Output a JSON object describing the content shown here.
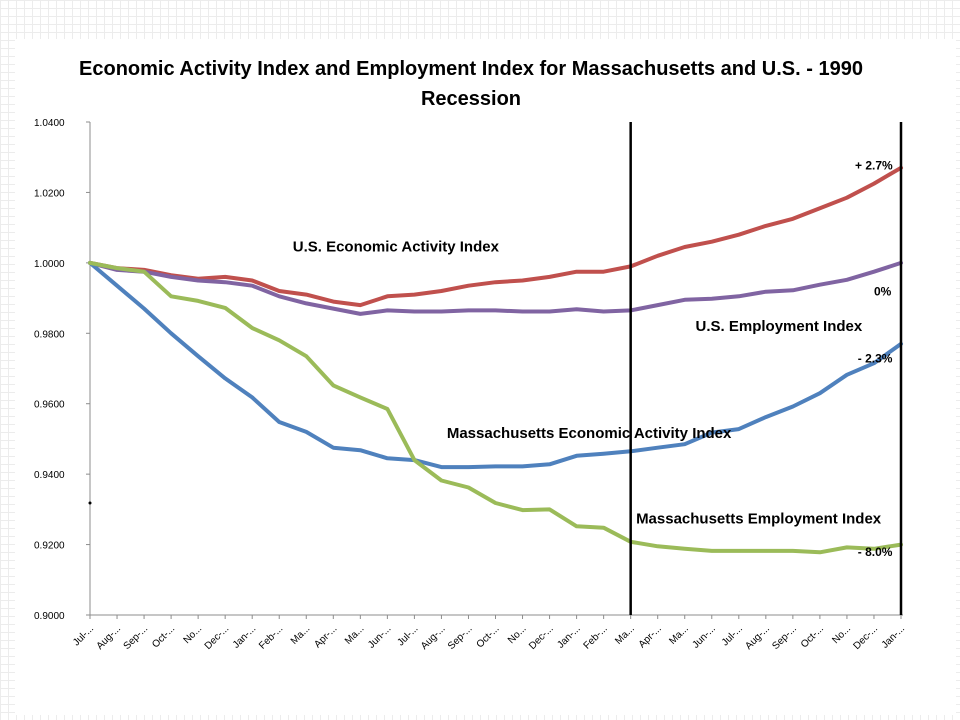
{
  "chart_data": {
    "type": "line",
    "title_lines": [
      "Economic Activity Index and Employment Index for Massachusetts and U.S. - 1990",
      "Recession"
    ],
    "xlabel": "",
    "ylabel": "",
    "ylim": [
      0.9,
      1.04
    ],
    "yticks": [
      "1.0400",
      "1.0200",
      "1.0000",
      "0.9800",
      "0.9600",
      "0.9400",
      "0.9200",
      "0.9000"
    ],
    "ytick_values": [
      1.04,
      1.02,
      1.0,
      0.98,
      0.96,
      0.94,
      0.92,
      0.9
    ],
    "grid": false,
    "legend": "none",
    "categories": [
      "Jul-...",
      "Aug-...",
      "Sep-...",
      "Oct-...",
      "No...",
      "Dec-...",
      "Jan-...",
      "Feb-...",
      "Ma...",
      "Apr-...",
      "Ma...",
      "Jun-...",
      "Jul-...",
      "Aug-...",
      "Sep-...",
      "Oct-...",
      "No...",
      "Dec-...",
      "Jan-...",
      "Feb-...",
      "Ma...",
      "Apr-...",
      "Ma...",
      "Jun-...",
      "Jul-...",
      "Aug-...",
      "Sep-...",
      "Oct-...",
      "No...",
      "Dec-...",
      "Jan-..."
    ],
    "series": [
      {
        "color": "#c0504d",
        "values": [
          1.0,
          0.9985,
          0.998,
          0.9965,
          0.9955,
          0.996,
          0.995,
          0.992,
          0.991,
          0.989,
          0.988,
          0.9905,
          0.991,
          0.992,
          0.9935,
          0.9945,
          0.995,
          0.996,
          0.9975,
          0.9975,
          0.999,
          1.002,
          1.0045,
          1.006,
          1.008,
          1.0105,
          1.0125,
          1.0155,
          1.0185,
          1.0225,
          1.027
        ]
      },
      {
        "color": "#8064a2",
        "values": [
          1.0,
          0.998,
          0.9975,
          0.996,
          0.995,
          0.9945,
          0.9935,
          0.9905,
          0.9885,
          0.987,
          0.9855,
          0.9865,
          0.9862,
          0.9862,
          0.9865,
          0.9865,
          0.9862,
          0.9862,
          0.9868,
          0.9862,
          0.9865,
          0.988,
          0.9895,
          0.9898,
          0.9905,
          0.9918,
          0.9922,
          0.9938,
          0.9952,
          0.9975,
          1.0
        ]
      },
      {
        "color": "#4f81bd",
        "values": [
          1.0,
          0.9935,
          0.987,
          0.98,
          0.9735,
          0.9672,
          0.9618,
          0.9548,
          0.952,
          0.9475,
          0.9468,
          0.9445,
          0.944,
          0.942,
          0.942,
          0.9422,
          0.9422,
          0.9428,
          0.9452,
          0.9458,
          0.9465,
          0.9475,
          0.9485,
          0.9518,
          0.9528,
          0.9562,
          0.9592,
          0.963,
          0.9682,
          0.9715,
          0.977
        ]
      },
      {
        "color": "#9bbb59",
        "values": [
          1.0,
          0.9985,
          0.9975,
          0.9905,
          0.9892,
          0.9872,
          0.9815,
          0.978,
          0.9735,
          0.9652,
          0.9618,
          0.9585,
          0.944,
          0.9382,
          0.9362,
          0.9318,
          0.9298,
          0.93,
          0.9252,
          0.9248,
          0.9208,
          0.9195,
          0.9188,
          0.9182,
          0.9182,
          0.9182,
          0.9182,
          0.9178,
          0.9192,
          0.9188,
          0.92
        ]
      }
    ],
    "annotations": [
      {
        "text": "U.S. Economic Activity Index",
        "x": 7.5,
        "y": 1.0032
      },
      {
        "text": "+ 2.7%",
        "x": 28.3,
        "y": 1.0265
      },
      {
        "text": "0%",
        "x": 29.0,
        "y": 0.9908
      },
      {
        "text": "U.S. Employment Index",
        "x": 22.4,
        "y": 0.9806
      },
      {
        "text": "- 2.3%",
        "x": 28.4,
        "y": 0.9717
      },
      {
        "text": "Massachusetts Economic Activity Index",
        "x": 13.2,
        "y": 0.9502
      },
      {
        "text": "Massachusetts Employment Index",
        "x": 20.2,
        "y": 0.926
      },
      {
        "text": "- 8.0%",
        "x": 28.4,
        "y": 0.9167
      }
    ],
    "vertical_lines_at": [
      20,
      30
    ]
  }
}
